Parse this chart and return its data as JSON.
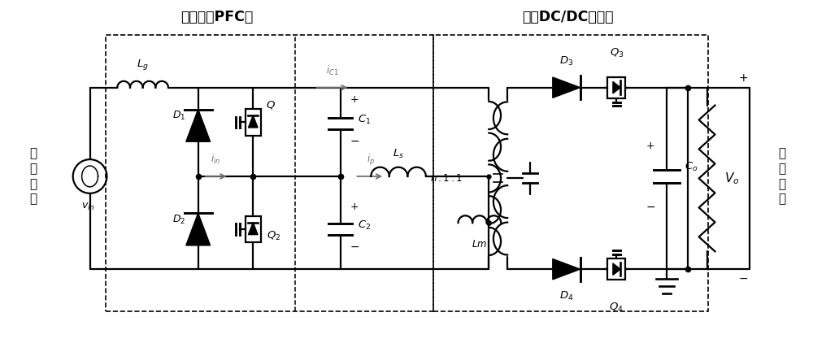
{
  "title_left": "图腾柱式PFC级",
  "title_right": "半桥DC/DC变换器",
  "label_input_circuit": "输\n入\n电\n路",
  "label_output_circuit": "输\n出\n负\n载",
  "bg_color": "#ffffff",
  "line_color": "#000000",
  "arrow_color": "#707070"
}
